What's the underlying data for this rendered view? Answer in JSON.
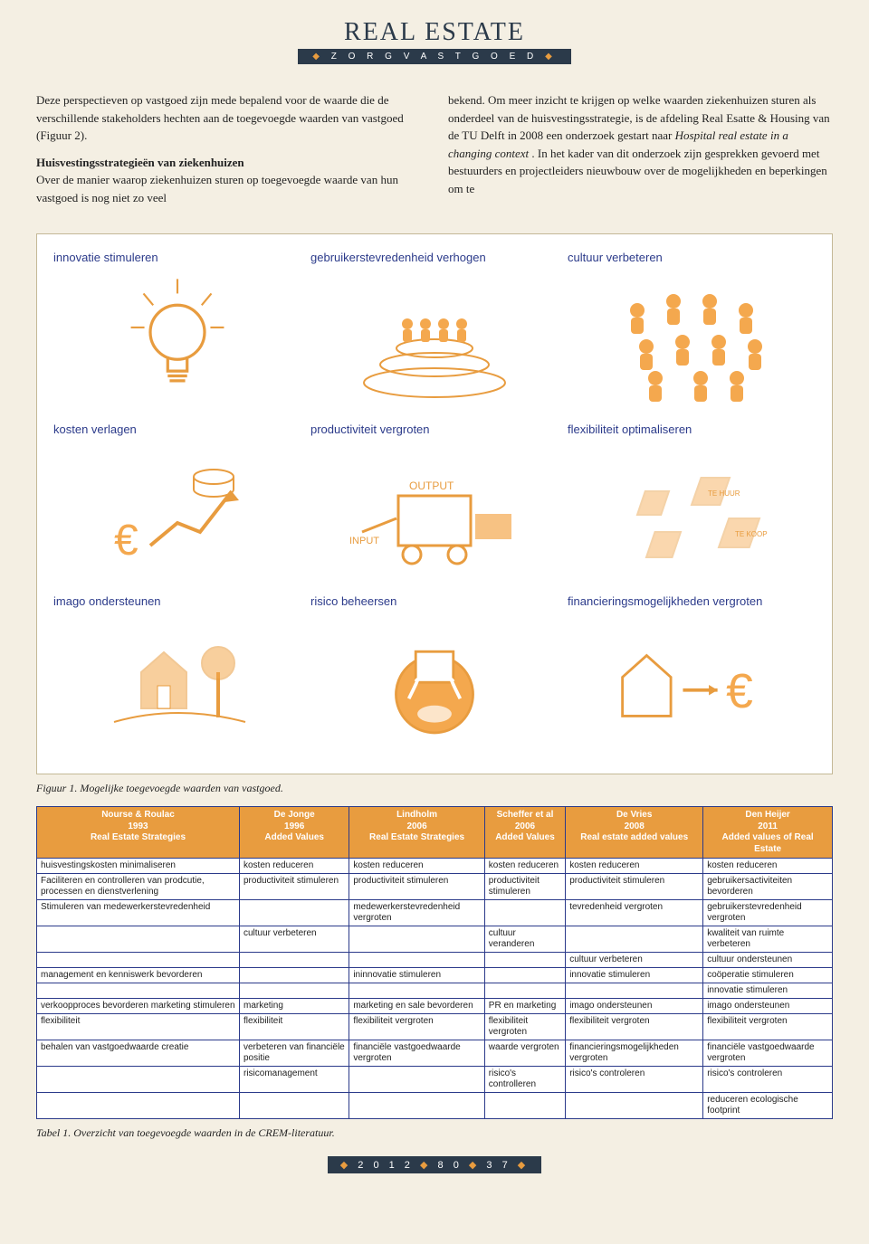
{
  "colors": {
    "bg": "#f4efe3",
    "navy": "#2b3a4a",
    "orange": "#e89c3f",
    "blueLabel": "#2b3a8a",
    "borderTan": "#c4b896",
    "white": "#ffffff",
    "text": "#222222"
  },
  "masthead": {
    "title": "REAL ESTATE",
    "subtitle": "Z O R G V A S T G O E D"
  },
  "body": {
    "leftCol": {
      "para1": "Deze perspectieven op vastgoed zijn mede bepalend voor de waarde die de verschillende stakeholders hechten aan de toegevoegde waarden van vastgoed (Figuur 2).",
      "heading": "Huisvestingsstrategieën van ziekenhuizen",
      "para2": "Over de manier waarop ziekenhuizen sturen op toegevoegde waarde van hun vastgoed is nog niet zo veel"
    },
    "rightCol": {
      "para1a": "bekend. Om meer inzicht te krijgen op welke waarden ziekenhuizen sturen als onderdeel van de huisvestingsstrategie, is de afdeling Real Esatte & Housing van de TU Delft in 2008 een onderzoek gestart naar ",
      "para1em": "Hospital real estate in a changing context",
      "para1b": ". In het kader van dit onderzoek zijn gesprekken gevoerd met bestuurders en projectleiders nieuwbouw over de mogelijkheden en beperkingen om te"
    }
  },
  "figure1": {
    "type": "infographic",
    "grid": "3x3",
    "label_color": "#2b3a8a",
    "icon_stroke": "#e89c3f",
    "icon_fill": "#f4a84e",
    "background_color": "#ffffff",
    "border_color": "#c4b896",
    "cell_fontsize": 13,
    "cells": [
      {
        "label": "innovatie stimuleren",
        "icon": "lightbulb"
      },
      {
        "label": "gebruikerstevredenheid verhogen",
        "icon": "podium-people"
      },
      {
        "label": "cultuur verbeteren",
        "icon": "people-group"
      },
      {
        "label": "kosten verlagen",
        "icon": "money-graph"
      },
      {
        "label": "productiviteit vergroten",
        "icon": "machine-output"
      },
      {
        "label": "flexibiliteit optimaliseren",
        "icon": "flex-boxes"
      },
      {
        "label": "imago ondersteunen",
        "icon": "house-tree"
      },
      {
        "label": "risico beheersen",
        "icon": "atlas-box"
      },
      {
        "label": "financieringsmogelijkheden vergroten",
        "icon": "house-euro"
      }
    ]
  },
  "caption1": "Figuur 1. Mogelijke toegevoegde waarden van vastgoed.",
  "table1": {
    "type": "table",
    "header_bg": "#e89c3f",
    "header_fg": "#ffffff",
    "border_color": "#2b3a8a",
    "fontsize": 10,
    "columns": [
      {
        "author": "Nourse & Roulac",
        "year": "1993",
        "topic": "Real Estate Strategies"
      },
      {
        "author": "De Jonge",
        "year": "1996",
        "topic": "Added Values"
      },
      {
        "author": "Lindholm",
        "year": "2006",
        "topic": "Real Estate Strategies"
      },
      {
        "author": "Scheffer et al",
        "year": "2006",
        "topic": "Added Values"
      },
      {
        "author": "De Vries",
        "year": "2008",
        "topic": "Real estate added values"
      },
      {
        "author": "Den Heijer",
        "year": "2011",
        "topic": "Added values of Real Estate"
      }
    ],
    "rows": [
      [
        "huisvestingskosten minimaliseren",
        "kosten reduceren",
        "kosten reduceren",
        "kosten reduceren",
        "kosten reduceren",
        "kosten reduceren"
      ],
      [
        "Faciliteren en controlleren van prodcutie, processen en dienstverlening",
        "productiviteit stimuleren",
        "productiviteit stimuleren",
        "productiviteit stimuleren",
        "productiviteit stimuleren",
        "gebruikersactiviteiten bevorderen"
      ],
      [
        "Stimuleren van medewerkerstevredenheid",
        "",
        "medewerkerstevredenheid vergroten",
        "",
        "tevredenheid vergroten",
        "gebruikerstevredenheid vergroten"
      ],
      [
        "",
        "cultuur verbeteren",
        "",
        "cultuur veranderen",
        "",
        "kwaliteit van ruimte verbeteren"
      ],
      [
        "",
        "",
        "",
        "",
        "cultuur verbeteren",
        "cultuur ondersteunen"
      ],
      [
        "management en kenniswerk bevorderen",
        "",
        "ininnovatie stimuleren",
        "",
        "innovatie stimuleren",
        "coöperatie stimuleren"
      ],
      [
        "",
        "",
        "",
        "",
        "",
        "innovatie stimuleren"
      ],
      [
        "verkoopproces bevorderen marketing stimuleren",
        "marketing",
        "marketing en sale bevorderen",
        "PR en marketing",
        "imago ondersteunen",
        "imago ondersteunen"
      ],
      [
        "flexibiliteit",
        "flexibiliteit",
        "flexibiliteit vergroten",
        "flexibiliteit vergroten",
        "flexibiliteit vergroten",
        "flexibiliteit vergroten"
      ],
      [
        "behalen van vastgoedwaarde creatie",
        "verbeteren van financiële positie",
        "financiële vastgoedwaarde vergroten",
        "waarde vergroten",
        "financieringsmogelijkheden vergroten",
        "financiële vastgoedwaarde vergroten"
      ],
      [
        "",
        "risicomanagement",
        "",
        "risico's controlleren",
        "risico's controleren",
        "risico's controleren"
      ],
      [
        "",
        "",
        "",
        "",
        "",
        "reduceren ecologische footprint"
      ]
    ]
  },
  "caption2": "Tabel 1. Overzicht van toegevoegde waarden in de CREM-literatuur.",
  "footer": {
    "year": "2 0 1 2",
    "issue": "8 0",
    "page": "3 7"
  }
}
